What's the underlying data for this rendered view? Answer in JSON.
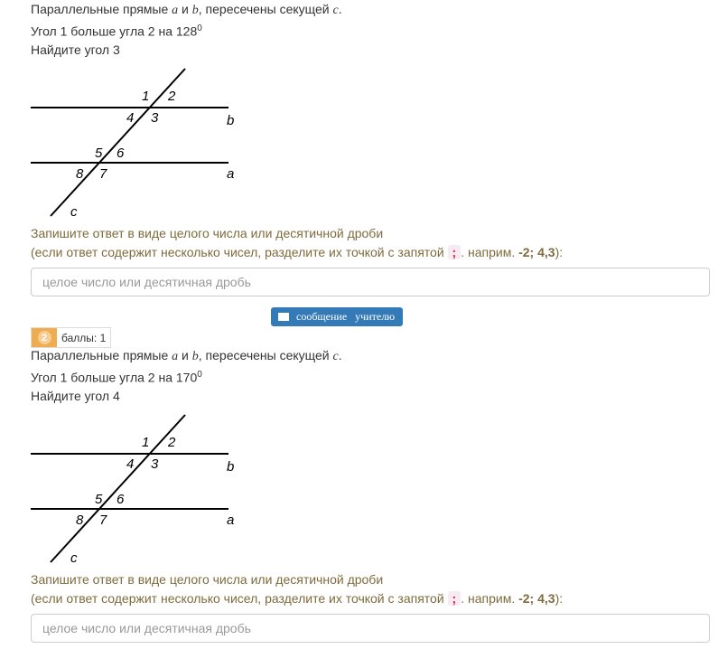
{
  "questions": [
    {
      "stmt_pre": "Параллельные прямые ",
      "var_a": "a",
      "and": " и ",
      "var_b": "b",
      "stmt_mid": ", пересечены секущей ",
      "var_c": "c",
      "stmt_end": ".",
      "cond": "Угол 1 больше угла 2 на 128",
      "sup": "0",
      "task": "Найдите угол 3",
      "labels": {
        "l1": "1",
        "l2": "2",
        "l3": "3",
        "l4": "4",
        "l5": "5",
        "l6": "6",
        "l7": "7",
        "l8": "8",
        "a": "a",
        "b": "b",
        "c": "c"
      },
      "instr1": "Запишите ответ в виде целого числа или десятичной дроби",
      "instr2_pre": "(если ответ содержит несколько чисел, разделите их точкой с запятой ",
      "semi": ";",
      "instr2_mid": ". наприм. ",
      "example": "-2; 4,3",
      "instr2_end": "):",
      "placeholder": "целое число или десятичная дробь"
    },
    {
      "number": "2",
      "points": "баллы: 1",
      "stmt_pre": "Параллельные прямые ",
      "var_a": "a",
      "and": " и ",
      "var_b": "b",
      "stmt_mid": ", пересечены секущей ",
      "var_c": "c",
      "stmt_end": ".",
      "cond": "Угол 1 больше угла 2 на 170",
      "sup": "0",
      "task": "Найдите угол 4",
      "labels": {
        "l1": "1",
        "l2": "2",
        "l3": "3",
        "l4": "4",
        "l5": "5",
        "l6": "6",
        "l7": "7",
        "l8": "8",
        "a": "a",
        "b": "b",
        "c": "c"
      },
      "instr1": "Запишите ответ в виде целого числа или десятичной дроби",
      "instr2_pre": "(если ответ содержит несколько чисел, разделите их точкой с запятой ",
      "semi": ";",
      "instr2_mid": ". наприм. ",
      "example": "-2; 4,3",
      "instr2_end": "):",
      "placeholder": "целое число или десятичная дробь"
    }
  ],
  "message_button": "сообщение   учителю",
  "colors": {
    "button": "#337ab7",
    "badge": "#f0ad4e",
    "instruction": "#7d6b3c"
  }
}
